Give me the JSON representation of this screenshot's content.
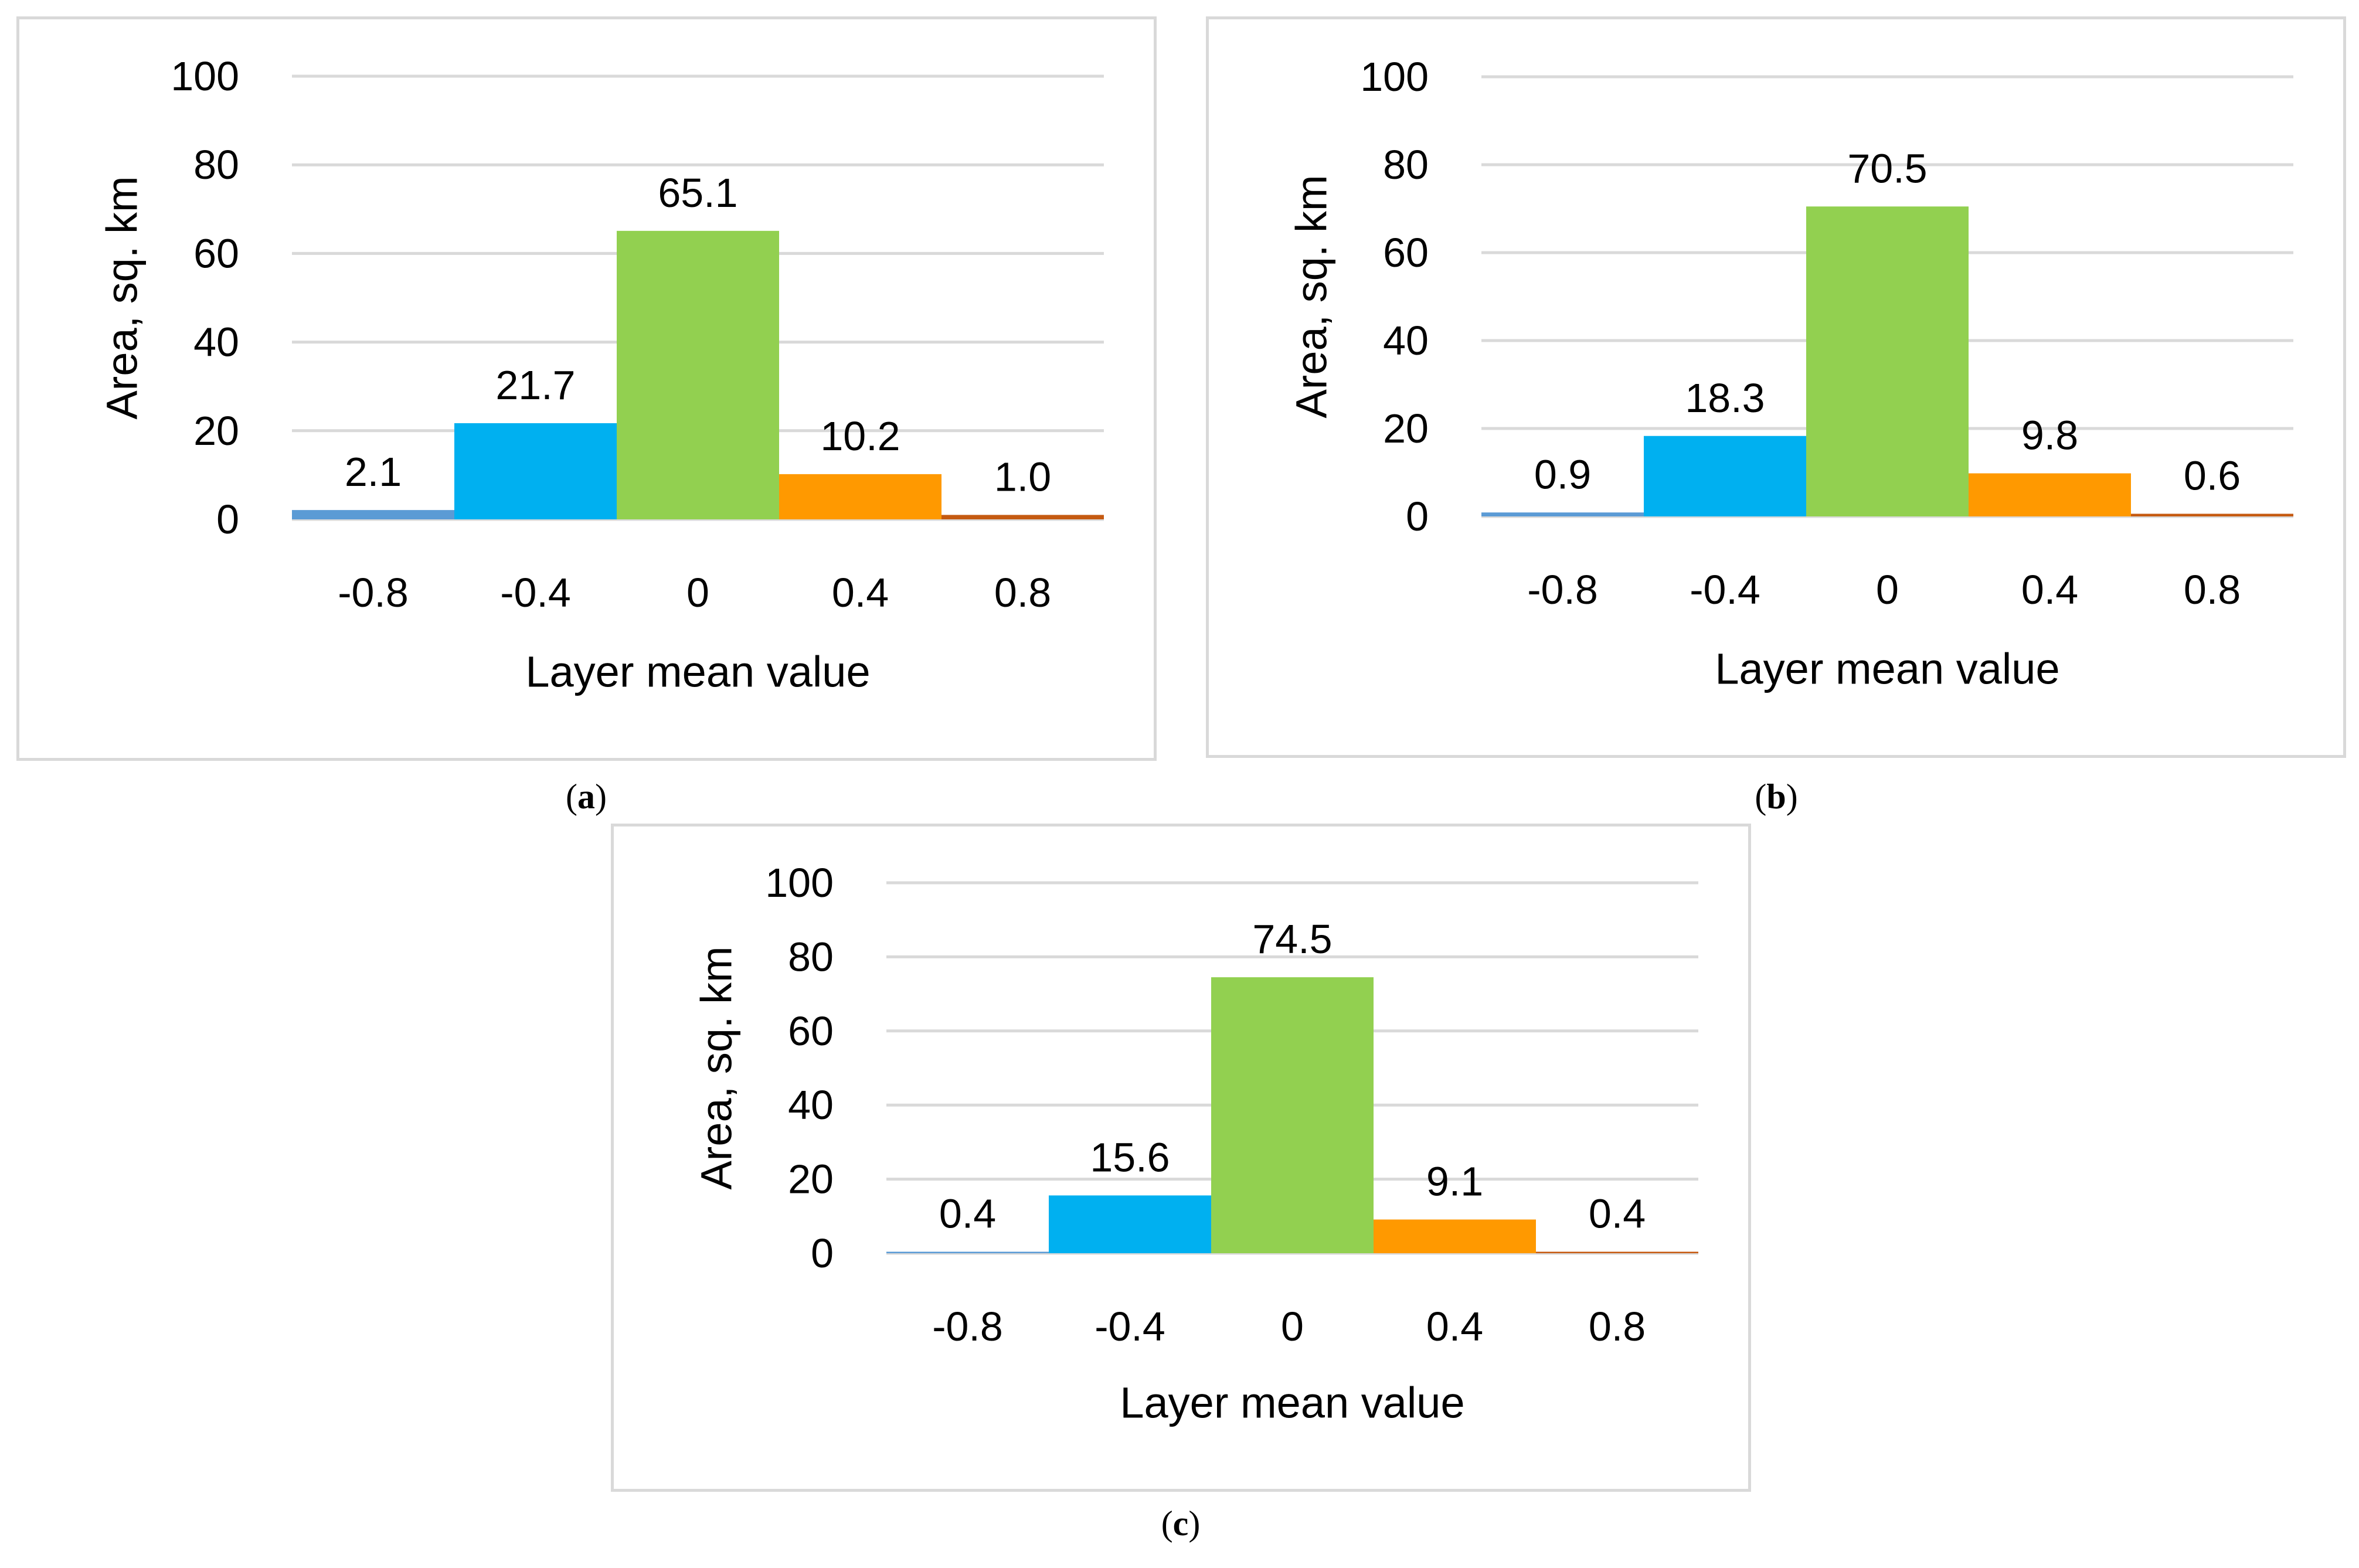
{
  "chart_data": [
    {
      "type": "bar",
      "panel": "a",
      "categories": [
        "-0.8",
        "-0.4",
        "0",
        "0.4",
        "0.8"
      ],
      "values": [
        2.1,
        21.7,
        65.1,
        10.2,
        1.0
      ],
      "data_labels": [
        "2.1",
        "21.7",
        "65.1",
        "10.2",
        "1.0"
      ],
      "bar_colors": [
        "#5b9bd5",
        "#00b0f0",
        "#92d050",
        "#ff9900",
        "#c55a11"
      ],
      "xlabel": "Layer mean value",
      "ylabel": "Area, sq. km",
      "ylim": [
        0,
        100
      ],
      "yticks": [
        "0",
        "20",
        "40",
        "60",
        "80",
        "100"
      ],
      "grid": true
    },
    {
      "type": "bar",
      "panel": "b",
      "categories": [
        "-0.8",
        "-0.4",
        "0",
        "0.4",
        "0.8"
      ],
      "values": [
        0.9,
        18.3,
        70.5,
        9.8,
        0.6
      ],
      "data_labels": [
        "0.9",
        "18.3",
        "70.5",
        "9.8",
        "0.6"
      ],
      "bar_colors": [
        "#5b9bd5",
        "#00b0f0",
        "#92d050",
        "#ff9900",
        "#c55a11"
      ],
      "xlabel": "Layer mean value",
      "ylabel": "Area, sq. km",
      "ylim": [
        0,
        100
      ],
      "yticks": [
        "0",
        "20",
        "40",
        "60",
        "80",
        "100"
      ],
      "grid": true
    },
    {
      "type": "bar",
      "panel": "c",
      "categories": [
        "-0.8",
        "-0.4",
        "0",
        "0.4",
        "0.8"
      ],
      "values": [
        0.4,
        15.6,
        74.5,
        9.1,
        0.4
      ],
      "data_labels": [
        "0.4",
        "15.6",
        "74.5",
        "9.1",
        "0.4"
      ],
      "bar_colors": [
        "#5b9bd5",
        "#00b0f0",
        "#92d050",
        "#ff9900",
        "#c55a11"
      ],
      "xlabel": "Layer mean value",
      "ylabel": "Area, sq. km",
      "ylim": [
        0,
        100
      ],
      "yticks": [
        "0",
        "20",
        "40",
        "60",
        "80",
        "100"
      ],
      "grid": true
    }
  ],
  "captions": [
    "a",
    "b",
    "c"
  ],
  "colors": {
    "grid": "#d9d9d9",
    "border": "#d9d9d9",
    "text": "#000000"
  }
}
